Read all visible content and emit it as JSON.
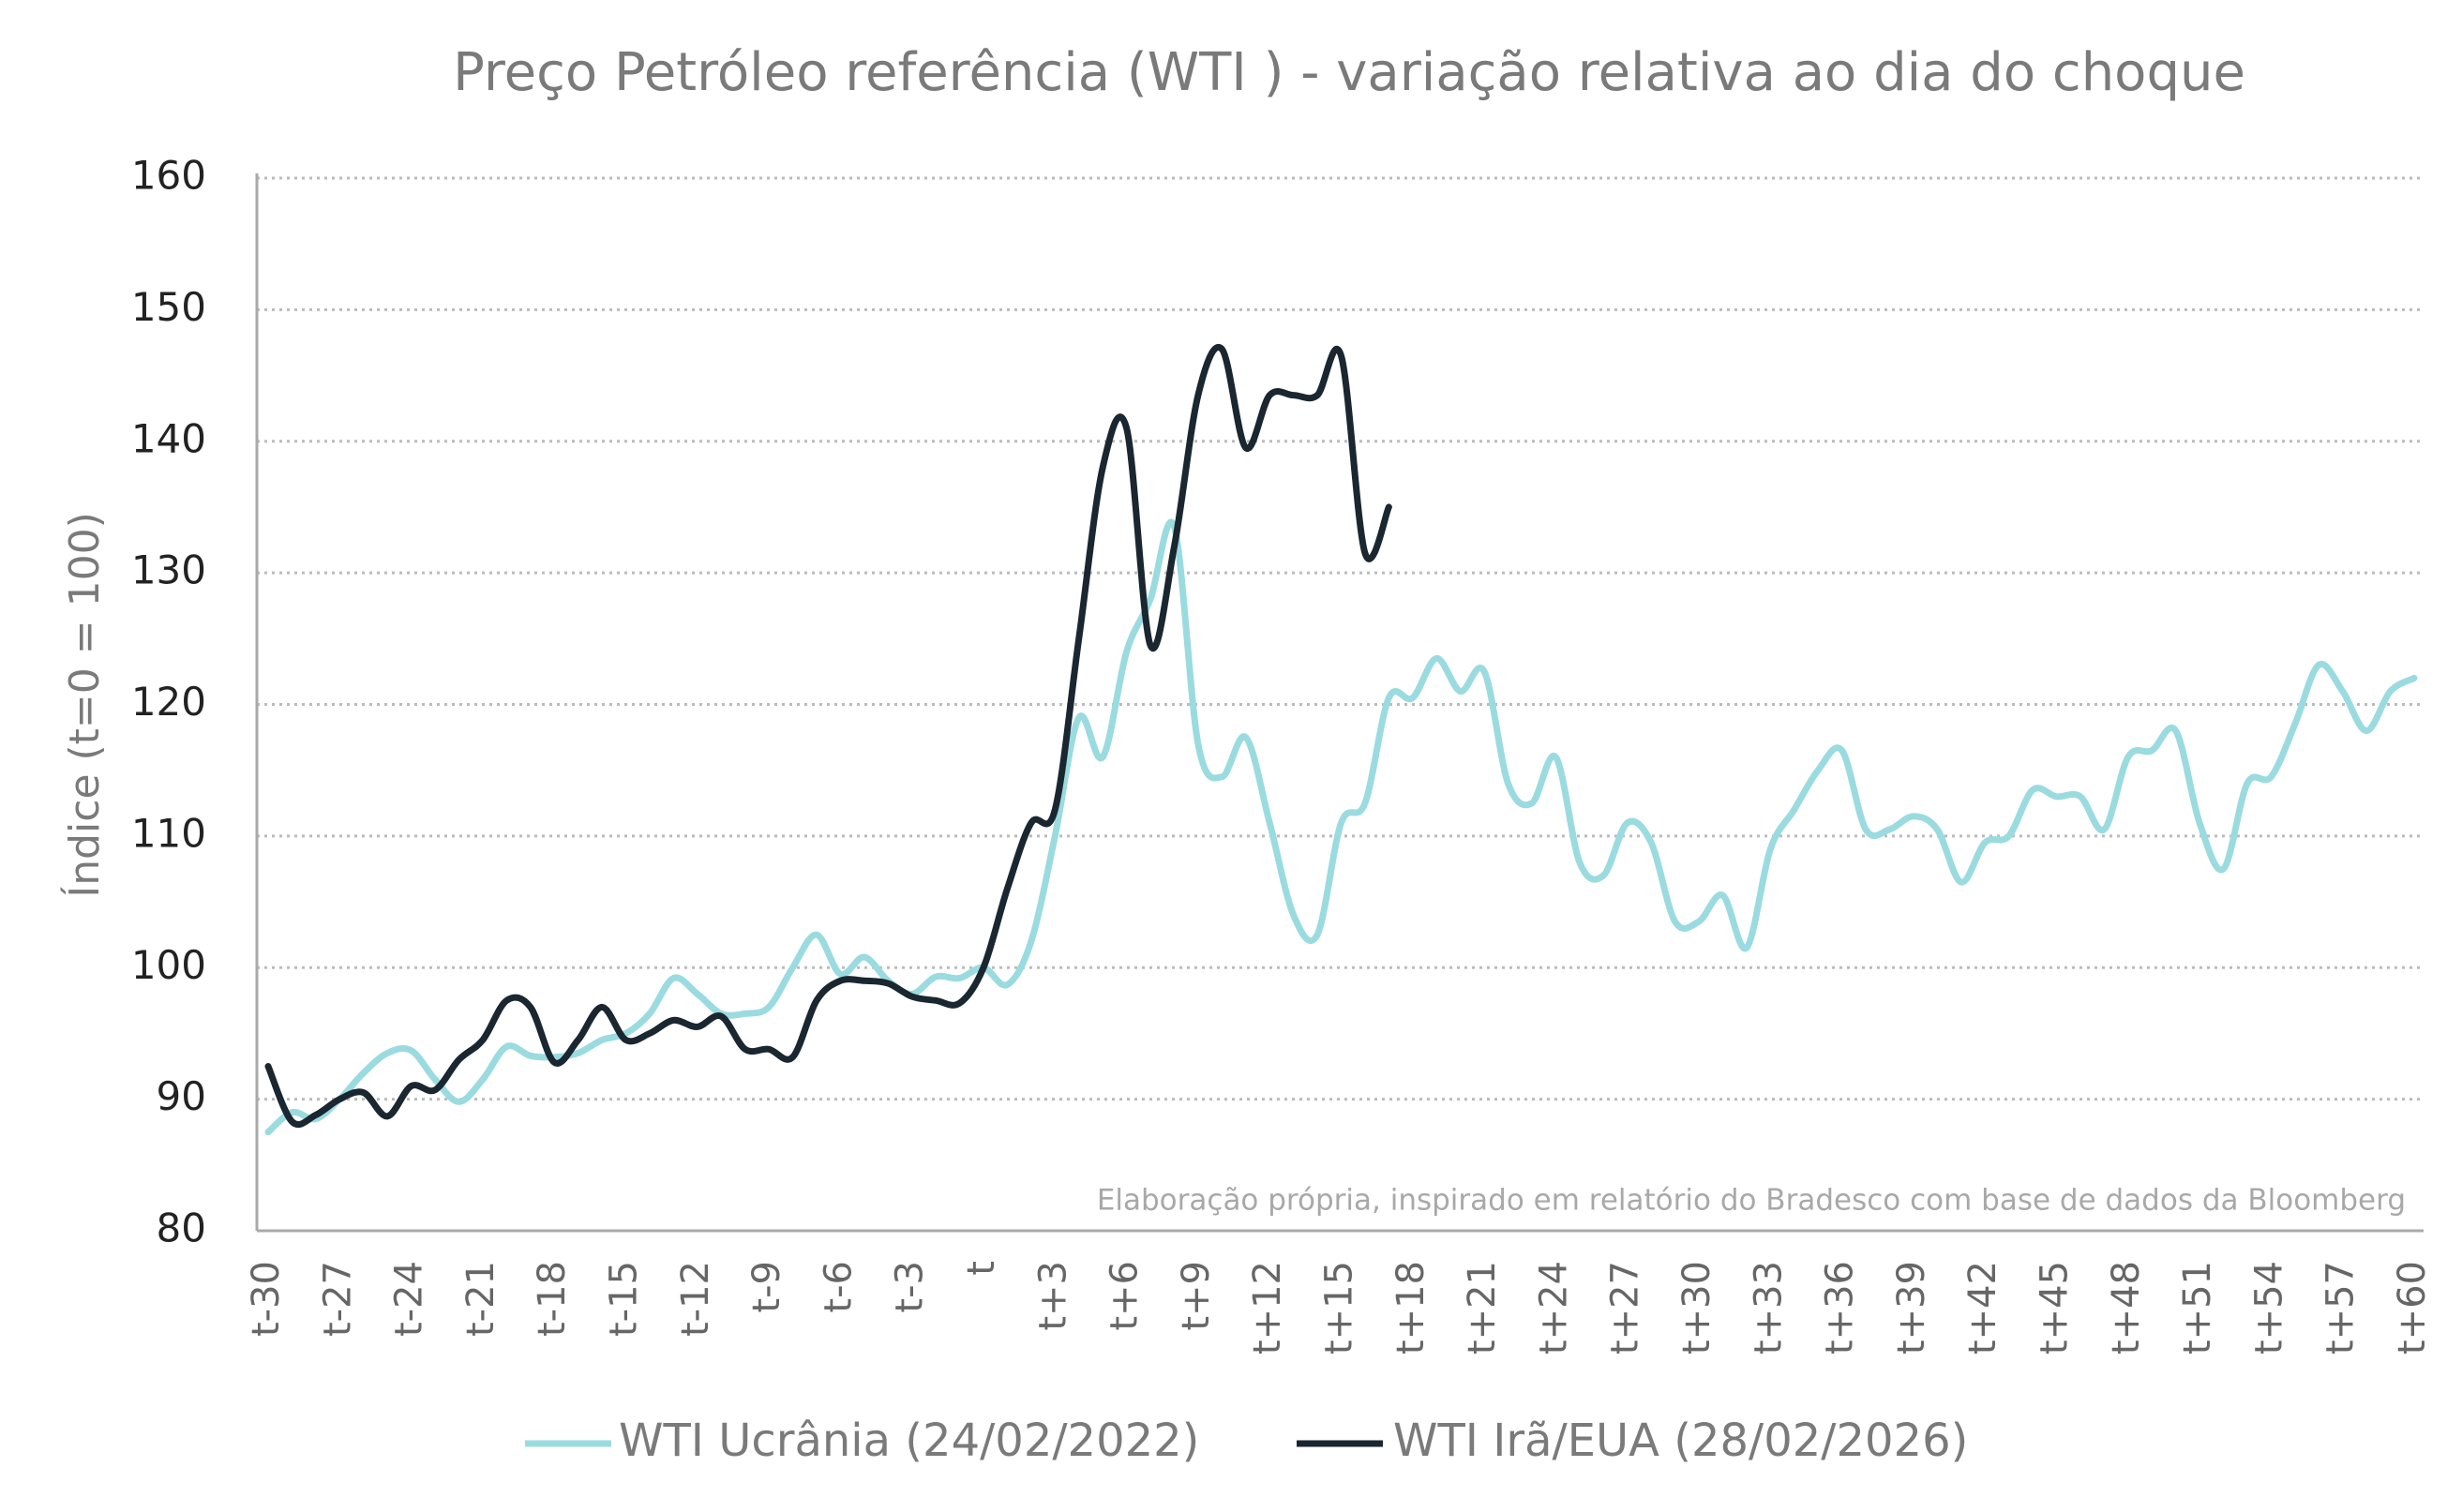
{
  "chart_data": {
    "type": "line",
    "title": "Preço Petróleo referência (WTI ) - variação relativa ao dia do choque",
    "y_label": "Índice (t=0 = 100)",
    "annotation": "Elaboração própria, inspirado em relatório do Bradesco com base de dados da Bloomberg",
    "categories": [
      "t-30",
      null,
      null,
      "t-27",
      null,
      null,
      "t-24",
      null,
      null,
      "t-21",
      null,
      null,
      "t-18",
      null,
      null,
      "t-15",
      null,
      null,
      "t-12",
      null,
      null,
      "t-9",
      null,
      null,
      "t-6",
      null,
      null,
      "t-3",
      null,
      null,
      "t",
      null,
      null,
      "t+3",
      null,
      null,
      "t+6",
      null,
      null,
      "t+9",
      null,
      null,
      "t+12",
      null,
      null,
      "t+15",
      null,
      null,
      "t+18",
      null,
      null,
      "t+21",
      null,
      null,
      "t+24",
      null,
      null,
      "t+27",
      null,
      null,
      "t+30",
      null,
      null,
      "t+33",
      null,
      null,
      "t+36",
      null,
      null,
      "t+39",
      null,
      null,
      "t+42",
      null,
      null,
      "t+45",
      null,
      null,
      "t+48",
      null,
      null,
      "t+51",
      null,
      null,
      "t+54",
      null,
      null,
      "t+57",
      null,
      null,
      "t+60"
    ],
    "series": [
      {
        "name": "WTI Ucrânia (24/02/2022)",
        "color": "#9adbe0",
        "values": [
          87.5,
          89,
          88.5,
          90,
          92,
          93.5,
          93.7,
          91.5,
          89.8,
          91.5,
          94,
          93.3,
          93.2,
          93.5,
          94.5,
          95,
          96.5,
          99.2,
          98,
          96.5,
          96.5,
          97,
          100,
          102.5,
          99.5,
          100.8,
          99,
          98,
          99.3,
          99.2,
          100,
          98.7,
          102,
          110,
          119,
          116,
          124,
          128,
          133.5,
          117,
          114.5,
          117.5,
          111,
          104,
          102.5,
          111,
          112.5,
          120.5,
          120.5,
          123.5,
          121,
          122.5,
          114,
          112.5,
          116,
          108,
          107,
          111,
          109.5,
          103.5,
          103.5,
          105.5,
          101.5,
          109,
          112,
          115,
          116.5,
          110.5,
          110.5,
          111.5,
          110.5,
          106.5,
          109.5,
          110,
          113.5,
          113,
          113,
          110.5,
          116,
          116.5,
          118,
          111,
          107.5,
          114,
          114.5,
          118.5,
          123,
          121,
          118,
          121,
          122
        ]
      },
      {
        "name": "WTI Irã/EUA (28/02/2026)",
        "color": "#1a2630",
        "values": [
          92.5,
          88.3,
          88.8,
          90,
          90.5,
          88.7,
          91,
          90.7,
          93,
          94.5,
          97.5,
          97,
          92.8,
          94.5,
          97,
          94.5,
          95,
          96,
          95.5,
          96.3,
          93.8,
          93.8,
          93.2,
          97.5,
          99,
          99,
          98.8,
          97.8,
          97.5,
          97.3,
          100,
          106,
          111,
          112,
          125,
          138,
          141,
          124.5,
          132,
          143.5,
          147,
          139.5,
          143.5,
          143.5,
          143.5,
          146.5,
          131.5,
          135,
          null,
          null,
          null,
          null,
          null,
          null,
          null,
          null,
          null,
          null,
          null,
          null,
          null,
          null,
          null,
          null,
          null,
          null,
          null,
          null,
          null,
          null,
          null,
          null,
          null,
          null,
          null,
          null,
          null,
          null,
          null,
          null,
          null,
          null,
          null,
          null,
          null,
          null,
          null,
          null,
          null,
          null,
          null
        ]
      }
    ],
    "ylim": [
      80,
      160
    ],
    "yticks": [
      80,
      90,
      100,
      110,
      120,
      130,
      140,
      150,
      160
    ],
    "grid": true
  }
}
